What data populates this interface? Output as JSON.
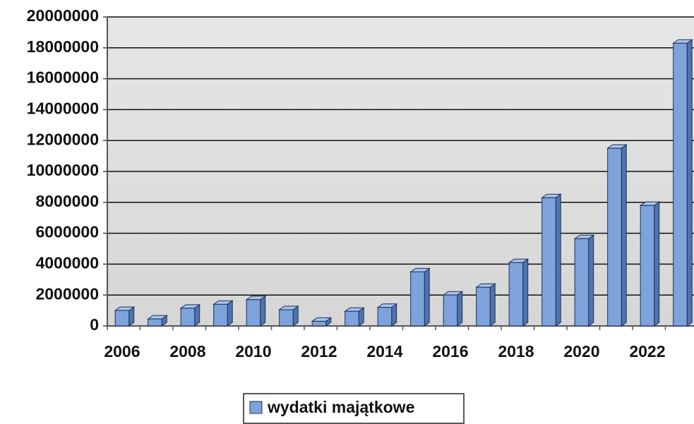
{
  "chart_data": {
    "type": "bar3d",
    "categories": [
      "2006",
      null,
      "2008",
      null,
      "2010",
      null,
      "2012",
      null,
      "2014",
      null,
      "2016",
      null,
      "2018",
      null,
      "2020",
      null,
      "2022",
      null
    ],
    "series": [
      {
        "name": "wydatki majątkowe",
        "color": "#7ea3dc",
        "values": [
          1000000,
          450000,
          1150000,
          1400000,
          1700000,
          1050000,
          300000,
          950000,
          1200000,
          3500000,
          2000000,
          2500000,
          4100000,
          8300000,
          5650000,
          11500000,
          7800000,
          18300000
        ]
      }
    ],
    "ylim": [
      0,
      20000000
    ],
    "yticks": [
      0,
      2000000,
      4000000,
      6000000,
      8000000,
      10000000,
      12000000,
      14000000,
      16000000,
      18000000,
      20000000
    ],
    "grid": true,
    "legend": "bottom"
  }
}
